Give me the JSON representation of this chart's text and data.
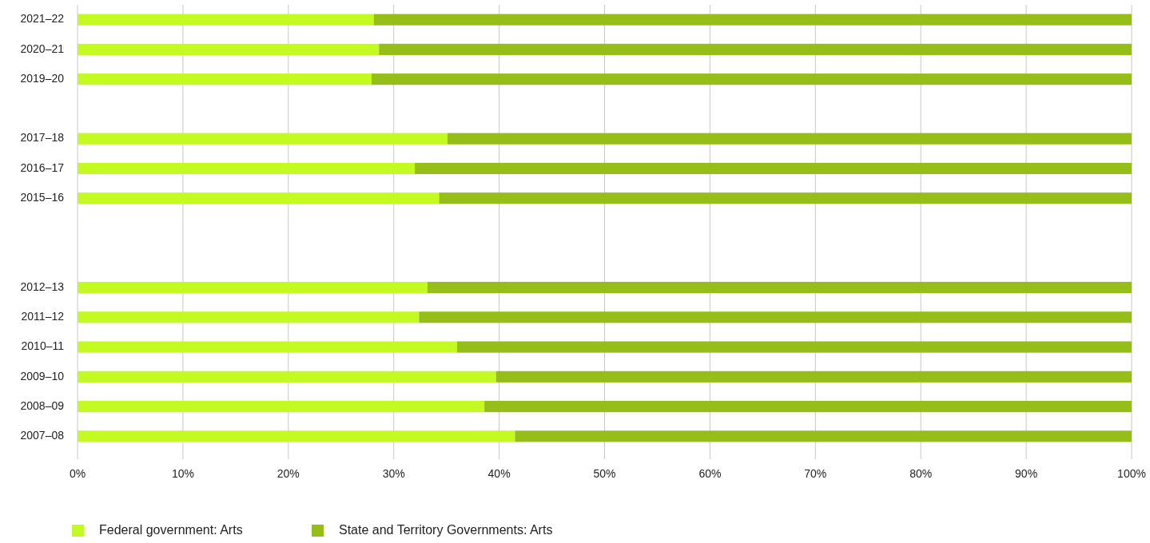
{
  "chart_data": {
    "type": "bar",
    "orientation": "horizontal",
    "stacked": true,
    "categories": [
      "2021–22",
      "2020–21",
      "2019–20",
      null,
      "2017–18",
      "2016–17",
      "2015–16",
      null,
      null,
      "2012–13",
      "2011–12",
      "2010–11",
      "2009–10",
      "2008–09",
      "2007–08"
    ],
    "series": [
      {
        "name": "Federal government: Arts",
        "color": "#c2fa22",
        "values": [
          28.1,
          28.6,
          27.9,
          null,
          35.1,
          32.0,
          34.3,
          null,
          null,
          33.2,
          32.4,
          36.0,
          39.7,
          38.6,
          41.5
        ]
      },
      {
        "name": "State and Territory Governments: Arts",
        "color": "#96be18",
        "values": [
          71.9,
          71.4,
          72.1,
          null,
          64.9,
          68.0,
          65.7,
          null,
          null,
          66.8,
          67.6,
          64.0,
          60.3,
          61.4,
          58.5
        ]
      }
    ],
    "xlim": [
      0,
      100
    ],
    "xticks": [
      {
        "value": 0,
        "label": "0%"
      },
      {
        "value": 10,
        "label": "10%"
      },
      {
        "value": 20,
        "label": "20%"
      },
      {
        "value": 30,
        "label": "30%"
      },
      {
        "value": 40,
        "label": "40%"
      },
      {
        "value": 50,
        "label": "50%"
      },
      {
        "value": 60,
        "label": "60%"
      },
      {
        "value": 70,
        "label": "70%"
      },
      {
        "value": 80,
        "label": "80%"
      },
      {
        "value": 90,
        "label": "90%"
      },
      {
        "value": 100,
        "label": "100%"
      }
    ],
    "grid": "x",
    "legend": "bottom left"
  }
}
